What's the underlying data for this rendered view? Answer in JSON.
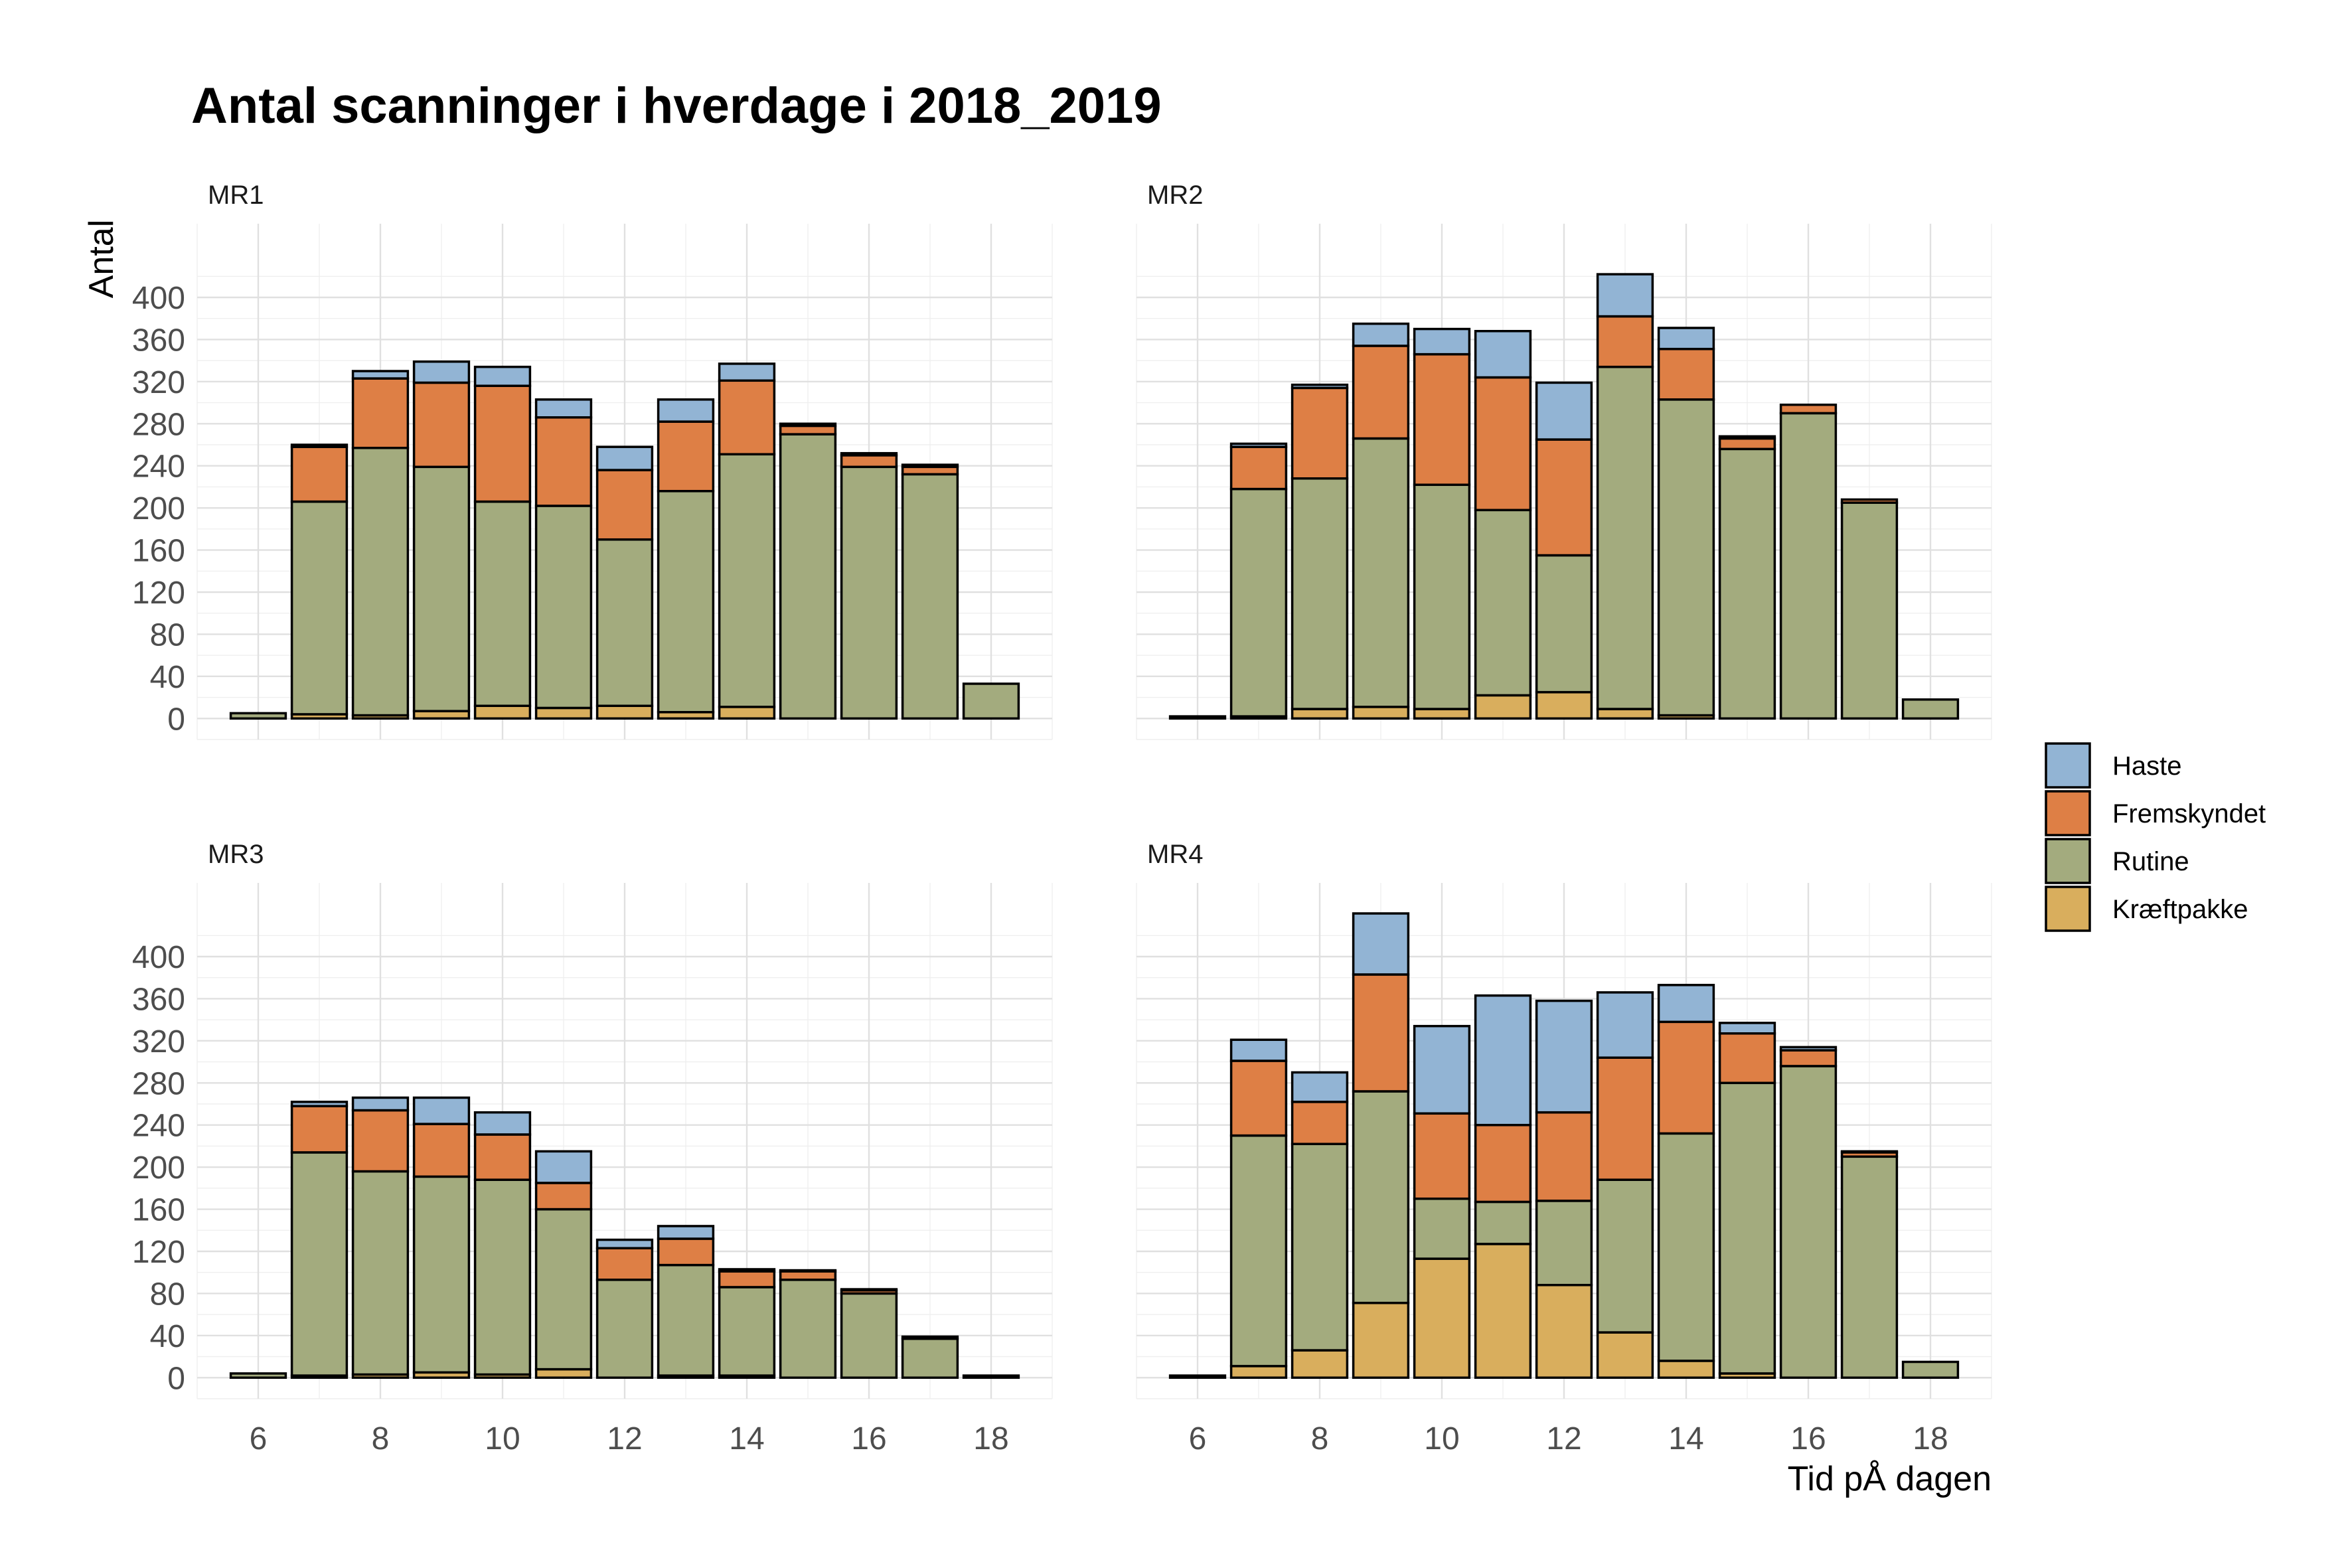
{
  "chart_data": {
    "type": "bar",
    "stacked": true,
    "title": "Antal scanninger i hverdage i 2018_2019",
    "xlabel": "Tid pÅ dagen",
    "ylabel": "Antal",
    "xlim": [
      5,
      19
    ],
    "ylim": [
      -20,
      470
    ],
    "x_ticks": [
      6,
      8,
      10,
      12,
      14,
      16,
      18
    ],
    "y_ticks": [
      0,
      40,
      80,
      120,
      160,
      200,
      240,
      280,
      320,
      360,
      400
    ],
    "grid": true,
    "legend_position": "right",
    "stack_order": [
      "Kræftpakke",
      "Rutine",
      "Fremskyndet",
      "Haste"
    ],
    "legend": [
      {
        "name": "Haste",
        "color": "#92b4d4"
      },
      {
        "name": "Fremskyndet",
        "color": "#de7f45"
      },
      {
        "name": "Rutine",
        "color": "#a3ab7e"
      },
      {
        "name": "Kræftpakke",
        "color": "#d9ae5d"
      }
    ],
    "x": [
      6,
      7,
      8,
      9,
      10,
      11,
      12,
      13,
      14,
      15,
      16,
      17,
      18
    ],
    "panels": [
      {
        "name": "MR1",
        "series": [
          {
            "name": "Kræftpakke",
            "values": [
              0,
              4,
              3,
              7,
              12,
              10,
              12,
              6,
              11,
              0,
              0,
              0,
              0
            ]
          },
          {
            "name": "Rutine",
            "values": [
              5,
              202,
              254,
              232,
              194,
              192,
              158,
              210,
              240,
              270,
              239,
              232,
              33
            ]
          },
          {
            "name": "Fremskyndet",
            "values": [
              0,
              52,
              66,
              80,
              110,
              84,
              66,
              66,
              70,
              8,
              11,
              7,
              0
            ]
          },
          {
            "name": "Haste",
            "values": [
              0,
              2,
              7,
              20,
              18,
              17,
              22,
              21,
              16,
              2,
              2,
              2,
              0
            ]
          }
        ]
      },
      {
        "name": "MR2",
        "series": [
          {
            "name": "Kræftpakke",
            "values": [
              0,
              2,
              9,
              11,
              9,
              22,
              25,
              9,
              3,
              0,
              0,
              0,
              0
            ]
          },
          {
            "name": "Rutine",
            "values": [
              2,
              216,
              219,
              255,
              213,
              176,
              130,
              325,
              300,
              256,
              290,
              205,
              18
            ]
          },
          {
            "name": "Fremskyndet",
            "values": [
              0,
              40,
              86,
              88,
              124,
              126,
              110,
              48,
              48,
              10,
              8,
              3,
              0
            ]
          },
          {
            "name": "Haste",
            "values": [
              0,
              3,
              3,
              21,
              24,
              44,
              54,
              40,
              20,
              2,
              0,
              0,
              0
            ]
          }
        ]
      },
      {
        "name": "MR3",
        "series": [
          {
            "name": "Kræftpakke",
            "values": [
              0,
              2,
              3,
              5,
              3,
              8,
              0,
              2,
              2,
              0,
              0,
              0,
              0
            ]
          },
          {
            "name": "Rutine",
            "values": [
              4,
              212,
              193,
              186,
              185,
              152,
              93,
              105,
              84,
              93,
              80,
              37,
              2
            ]
          },
          {
            "name": "Fremskyndet",
            "values": [
              0,
              44,
              58,
              50,
              43,
              25,
              30,
              25,
              15,
              8,
              3,
              2,
              0
            ]
          },
          {
            "name": "Haste",
            "values": [
              0,
              4,
              12,
              25,
              21,
              30,
              8,
              12,
              2,
              1,
              1,
              0,
              0
            ]
          }
        ]
      },
      {
        "name": "MR4",
        "series": [
          {
            "name": "Kræftpakke",
            "values": [
              0,
              11,
              26,
              71,
              113,
              127,
              88,
              43,
              16,
              4,
              0,
              0,
              0
            ]
          },
          {
            "name": "Rutine",
            "values": [
              2,
              219,
              196,
              201,
              57,
              40,
              80,
              145,
              216,
              276,
              296,
              210,
              15
            ]
          },
          {
            "name": "Fremskyndet",
            "values": [
              0,
              71,
              40,
              111,
              81,
              73,
              84,
              116,
              106,
              47,
              15,
              4,
              0
            ]
          },
          {
            "name": "Haste",
            "values": [
              0,
              20,
              28,
              58,
              83,
              123,
              106,
              62,
              35,
              10,
              3,
              1,
              0
            ]
          }
        ]
      }
    ]
  }
}
